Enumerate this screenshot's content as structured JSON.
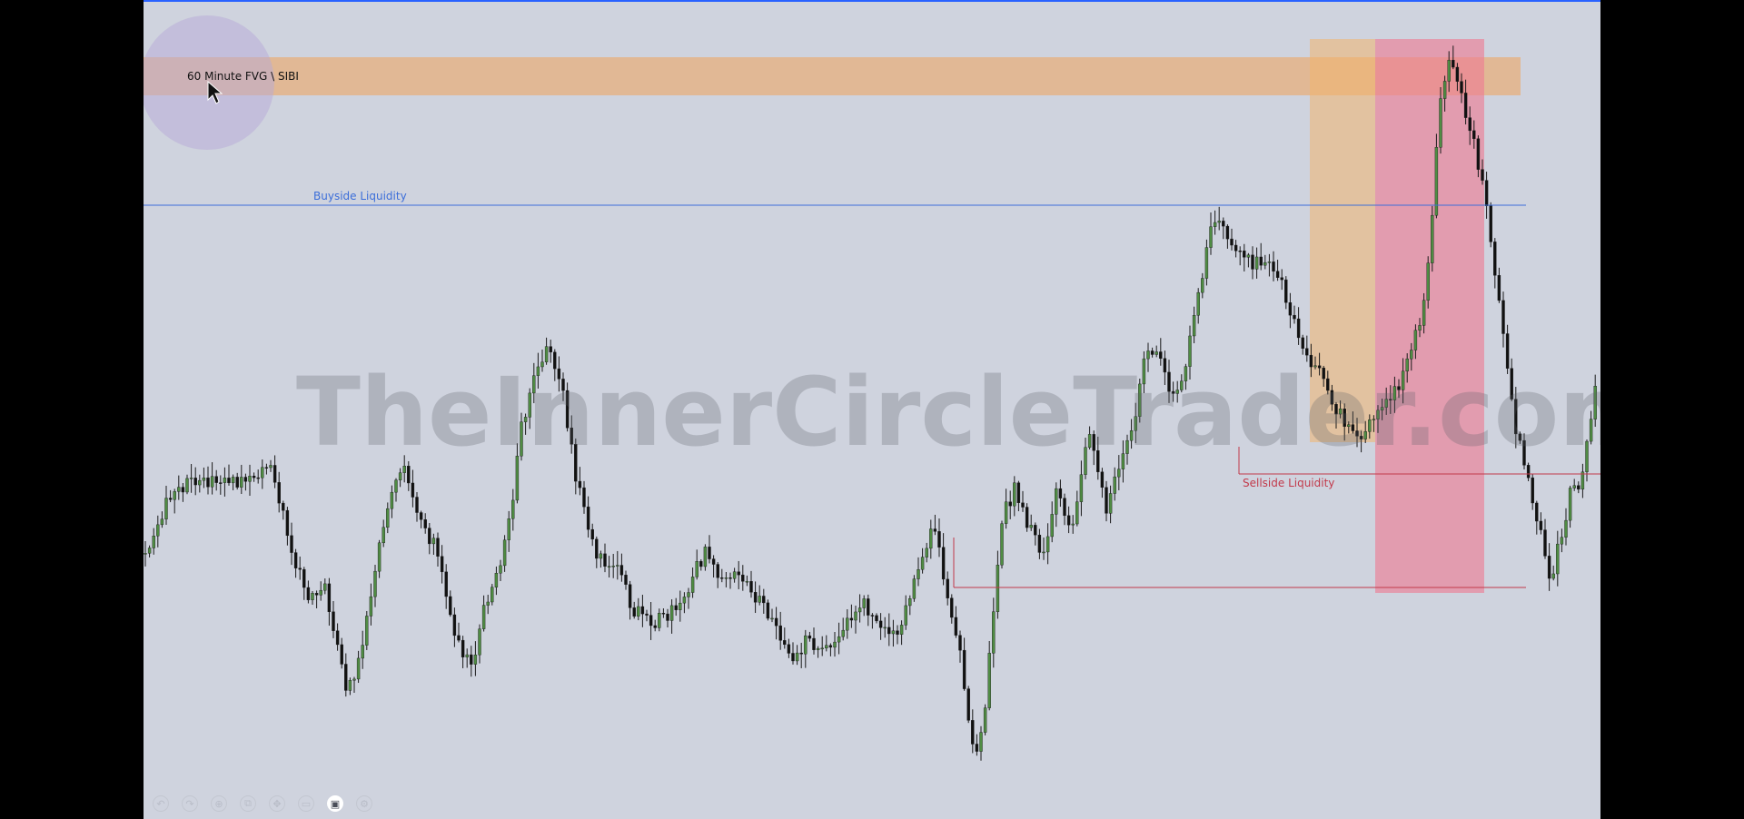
{
  "chart_data": {
    "type": "candlestick",
    "annotations": {
      "fvg_label": "60 Minute FVG \\ SIBI",
      "buyside_label": "Buyside Liquidity",
      "sellside_label": "Sellside Liquidity"
    },
    "watermark": "TheInnerCircleTrader.com",
    "colors": {
      "background": "#cfd3de",
      "bull_candle": "#4f8c43",
      "bear_candle": "#111111",
      "fvg_zone": "#f0a35a",
      "premium_zone": "#f3b46e",
      "discount_zone": "#ee7b93",
      "buyside_line": "#3c6ed9",
      "sellside_line": "#c23a4b",
      "cursor_highlight": "#b8a9d8"
    },
    "grid": false,
    "seed": 20240517
  },
  "toolbar": {
    "icons": [
      "undo-icon",
      "redo-icon",
      "zoom-icon",
      "crop-icon",
      "pan-icon",
      "layout-icon",
      "camera-icon",
      "settings-icon"
    ],
    "glyphs": [
      "↶",
      "↷",
      "⊕",
      "⧉",
      "✥",
      "▭",
      "▣",
      "⚙"
    ]
  }
}
